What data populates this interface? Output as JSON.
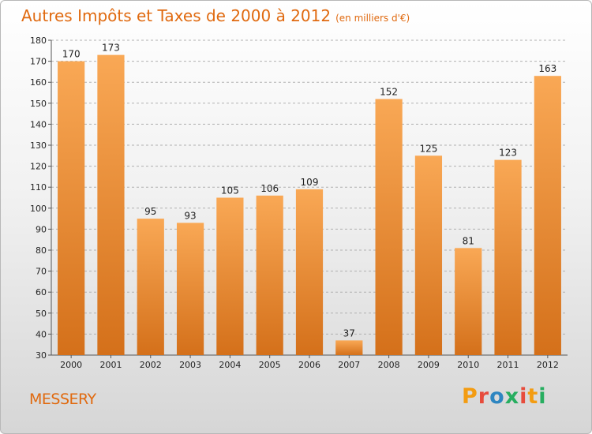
{
  "title": "Autres Impôts et Taxes de 2000 à 2012",
  "unit_note": "(en milliers d'€)",
  "commune": "MESSERY",
  "brand": {
    "text": "Proxiti",
    "letter_colors": [
      "#f39c12",
      "#e74c3c",
      "#2e86c1",
      "#27ae60",
      "#e74c3c",
      "#f39c12",
      "#27ae60"
    ]
  },
  "colors": {
    "accent": "#e06a10",
    "bar_top": "#f9a855",
    "bar_bottom": "#d4701a",
    "grid": "#b0b0b0"
  },
  "chart_data": {
    "type": "bar",
    "title": "Autres Impôts et Taxes de 2000 à 2012",
    "subtitle": "(en milliers d'€)",
    "xlabel": "",
    "ylabel": "",
    "categories": [
      "2000",
      "2001",
      "2002",
      "2003",
      "2004",
      "2005",
      "2006",
      "2007",
      "2008",
      "2009",
      "2010",
      "2011",
      "2012"
    ],
    "values": [
      170,
      173,
      95,
      93,
      105,
      106,
      109,
      37,
      152,
      125,
      81,
      123,
      163
    ],
    "ylim": [
      30,
      180
    ],
    "yticks": [
      30,
      40,
      50,
      60,
      70,
      80,
      90,
      100,
      110,
      120,
      130,
      140,
      150,
      160,
      170,
      180
    ],
    "grid": "horizontal dashed",
    "legend": "none",
    "data_labels": true
  }
}
